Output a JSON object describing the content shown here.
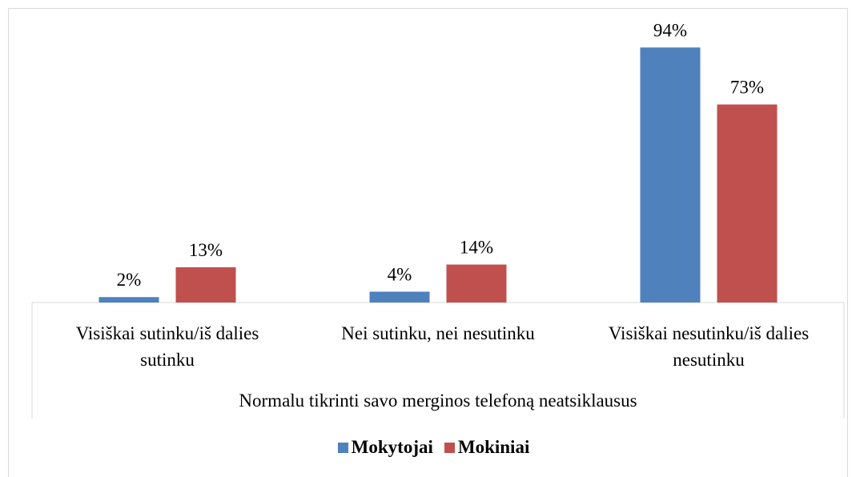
{
  "chart_data": {
    "type": "bar",
    "categories": [
      "Visiškai sutinku/iš dalies sutinku",
      "Nei sutinku, nei nesutinku",
      "Visiškai nesutinku/iš dalies nesutinku"
    ],
    "group_label": "Normalu tikrinti savo merginos telefoną neatsiklausus",
    "series": [
      {
        "name": "Mokytojai",
        "color": "#4f81bd",
        "values": [
          2,
          4,
          94
        ],
        "value_labels": [
          "2%",
          "4%",
          "94%"
        ]
      },
      {
        "name": "Mokiniai",
        "color": "#c0504d",
        "values": [
          13,
          14,
          73
        ],
        "value_labels": [
          "13%",
          "14%",
          "73%"
        ]
      }
    ],
    "ylim": [
      0,
      100
    ]
  }
}
